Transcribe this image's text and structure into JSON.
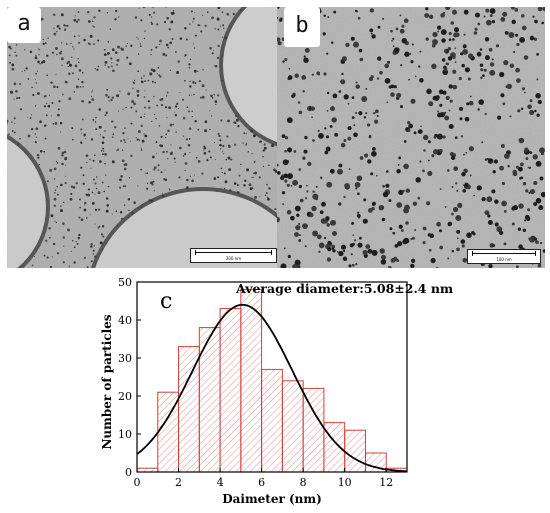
{
  "panels": {
    "a": {
      "label": "a",
      "scale_bar": "200 nm"
    },
    "b": {
      "label": "b",
      "scale_bar": "100 nm"
    }
  },
  "chart_data": {
    "type": "bar",
    "panel_label": "c",
    "annotation": "Average diameter:5.08±2.4 nm",
    "xlabel": "Daimeter (nm)",
    "ylabel": "Number of particles",
    "xlim": [
      0,
      13
    ],
    "ylim": [
      0,
      50
    ],
    "x_ticks": [
      0,
      2,
      4,
      6,
      8,
      10,
      12
    ],
    "y_ticks": [
      0,
      10,
      20,
      30,
      40,
      50
    ],
    "bin_width": 1,
    "bins": [
      {
        "x_start": 0,
        "count": 1
      },
      {
        "x_start": 1,
        "count": 21
      },
      {
        "x_start": 2,
        "count": 33
      },
      {
        "x_start": 3,
        "count": 38
      },
      {
        "x_start": 4,
        "count": 43
      },
      {
        "x_start": 5,
        "count": 48
      },
      {
        "x_start": 6,
        "count": 27
      },
      {
        "x_start": 7,
        "count": 24
      },
      {
        "x_start": 8,
        "count": 22
      },
      {
        "x_start": 9,
        "count": 13
      },
      {
        "x_start": 10,
        "count": 11
      },
      {
        "x_start": 11,
        "count": 5
      },
      {
        "x_start": 12,
        "count": 1
      }
    ],
    "fit": {
      "type": "gaussian",
      "mean": 5.08,
      "sigma": 2.4,
      "peak": 44
    },
    "colors": {
      "bar_edge": "#d04040",
      "bar_hatch": "#e07070",
      "fit_line": "#000000"
    }
  }
}
